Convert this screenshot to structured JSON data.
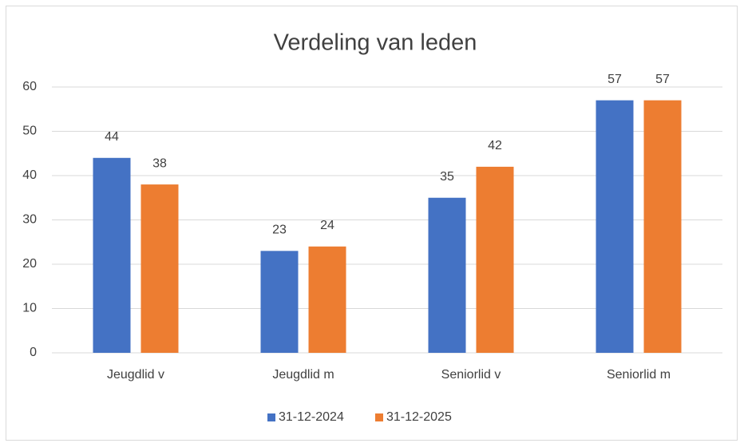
{
  "chart_data": {
    "type": "bar",
    "title": "Verdeling van leden",
    "categories": [
      "Jeugdlid v",
      "Jeugdlid m",
      "Seniorlid v",
      "Seniorlid m"
    ],
    "series": [
      {
        "name": "31-12-2024",
        "color": "#4472c4",
        "values": [
          44,
          23,
          35,
          57
        ]
      },
      {
        "name": "31-12-2025",
        "color": "#ed7d31",
        "values": [
          38,
          24,
          42,
          57
        ]
      }
    ],
    "ylim": [
      0,
      60
    ],
    "yticks": [
      0,
      10,
      20,
      30,
      40,
      50,
      60
    ],
    "grid": true,
    "legend": "bottom"
  }
}
